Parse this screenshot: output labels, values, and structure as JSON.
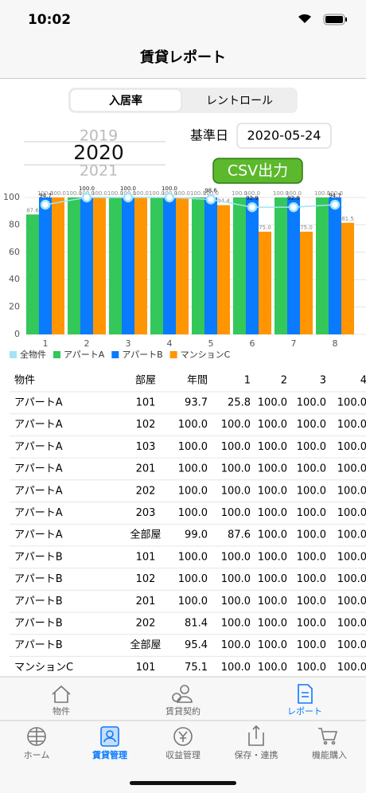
{
  "status_bar": {
    "time": "10:02"
  },
  "nav": {
    "title": "賃貸レポート"
  },
  "segments": {
    "items": [
      "入居率",
      "レントロール"
    ],
    "selected": 0
  },
  "picker": {
    "items": [
      "2019",
      "2020",
      "2021"
    ],
    "selected": 1
  },
  "base_date": {
    "label": "基準日",
    "value": "2020-05-24"
  },
  "csv_button": {
    "label": "CSV出力"
  },
  "chart_data": {
    "type": "bar",
    "categories": [
      "1",
      "2",
      "3",
      "4",
      "5",
      "6",
      "7",
      "8"
    ],
    "series": [
      {
        "name": "全物件",
        "type": "line",
        "color": "#a3e4f5",
        "values": [
          94.7,
          100,
          100,
          100,
          98.6,
          92.9,
          92.9,
          94.7
        ],
        "value_labels": [
          "94.7",
          "100.0",
          "100.0",
          "100.0",
          "98.6",
          "92.9",
          "92.9",
          "94.7"
        ]
      },
      {
        "name": "アパートA",
        "type": "bar",
        "color": "#34c759",
        "values": [
          87.6,
          100,
          100,
          100,
          100,
          100,
          100,
          100
        ],
        "value_labels": [
          "87.6",
          "100.0",
          "100.0",
          "100.0",
          "100.0",
          "100.0",
          "100.0",
          "100.0"
        ]
      },
      {
        "name": "アパートB",
        "type": "bar",
        "color": "#0a7aff",
        "values": [
          100,
          100,
          100,
          100,
          100,
          100,
          100,
          100
        ],
        "value_labels": [
          "100.0",
          "100.0",
          "100.0",
          "100.0",
          "100.0",
          "100.0",
          "100.0",
          "100.0"
        ]
      },
      {
        "name": "マンションC",
        "type": "bar",
        "color": "#ff9500",
        "values": [
          100,
          100,
          100,
          100,
          94.4,
          75.0,
          75.0,
          81.5
        ],
        "value_labels": [
          "100.0",
          "100.0",
          "100.0",
          "100.0",
          "94.4",
          "75.0",
          "75.0",
          "81.5"
        ]
      }
    ],
    "ylim": [
      0,
      100
    ],
    "yticks": [
      0,
      20,
      40,
      60,
      80,
      100
    ],
    "grid": true,
    "legend": "bottom-left"
  },
  "table": {
    "columns": [
      "物件",
      "部屋",
      "年間",
      "1",
      "2",
      "3",
      "4"
    ],
    "rows": [
      [
        "アパートA",
        "101",
        "93.7",
        "25.8",
        "100.0",
        "100.0",
        "100.0"
      ],
      [
        "アパートA",
        "102",
        "100.0",
        "100.0",
        "100.0",
        "100.0",
        "100.0"
      ],
      [
        "アパートA",
        "103",
        "100.0",
        "100.0",
        "100.0",
        "100.0",
        "100.0"
      ],
      [
        "アパートA",
        "201",
        "100.0",
        "100.0",
        "100.0",
        "100.0",
        "100.0"
      ],
      [
        "アパートA",
        "202",
        "100.0",
        "100.0",
        "100.0",
        "100.0",
        "100.0"
      ],
      [
        "アパートA",
        "203",
        "100.0",
        "100.0",
        "100.0",
        "100.0",
        "100.0"
      ],
      [
        "アパートA",
        "全部屋",
        "99.0",
        "87.6",
        "100.0",
        "100.0",
        "100.0"
      ],
      [
        "アパートB",
        "101",
        "100.0",
        "100.0",
        "100.0",
        "100.0",
        "100.0"
      ],
      [
        "アパートB",
        "102",
        "100.0",
        "100.0",
        "100.0",
        "100.0",
        "100.0"
      ],
      [
        "アパートB",
        "201",
        "100.0",
        "100.0",
        "100.0",
        "100.0",
        "100.0"
      ],
      [
        "アパートB",
        "202",
        "81.4",
        "100.0",
        "100.0",
        "100.0",
        "100.0"
      ],
      [
        "アパートB",
        "全部屋",
        "95.4",
        "100.0",
        "100.0",
        "100.0",
        "100.0"
      ],
      [
        "マンションC",
        "101",
        "75.1",
        "100.0",
        "100.0",
        "100.0",
        "100.0"
      ]
    ]
  },
  "sub_tabs": {
    "items": [
      "物件",
      "賃貸契約",
      "レポート"
    ],
    "selected": 2
  },
  "tab_bar": {
    "items": [
      "ホーム",
      "賃貸管理",
      "収益管理",
      "保存・連携",
      "機能購入"
    ],
    "selected": 1
  }
}
